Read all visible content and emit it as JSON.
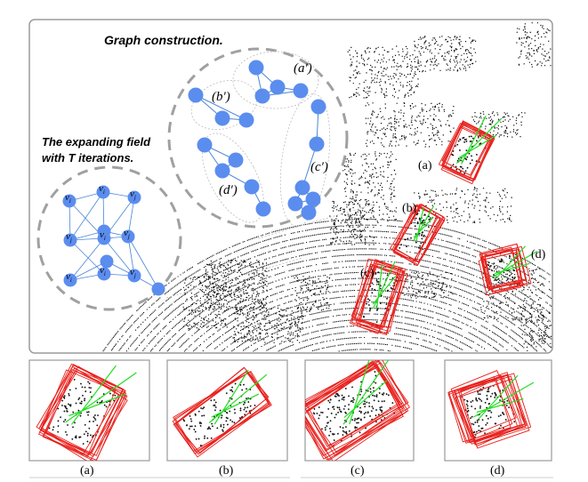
{
  "main_panel": {
    "caption_graph": "Graph construction.",
    "caption_field_line1": "The expanding field",
    "caption_field_line2": "with T iterations.",
    "cluster_labels": [
      "(a′)",
      "(b′)",
      "(c′)",
      "(d′)"
    ],
    "scene_labels": [
      "(a)",
      "(b)",
      "(c)",
      "(d)"
    ],
    "node_labels": [
      "v",
      "v",
      "v",
      "v",
      "v",
      "v",
      "v",
      "v",
      "v"
    ],
    "node_subscripts": [
      "i",
      "i",
      "j",
      "j",
      "i",
      "j",
      "i",
      "i",
      "j"
    ]
  },
  "subpanels": {
    "labels": [
      "(a)",
      "(b)",
      "(c)",
      "(d)"
    ]
  },
  "colors": {
    "node": "#5b8def",
    "edge": "#4a86d8",
    "box": "#e8201c",
    "direction": "#22dd22",
    "points": "#111111",
    "frame": "#9a9a9a",
    "dashed_circle": "#a0a0a0"
  }
}
